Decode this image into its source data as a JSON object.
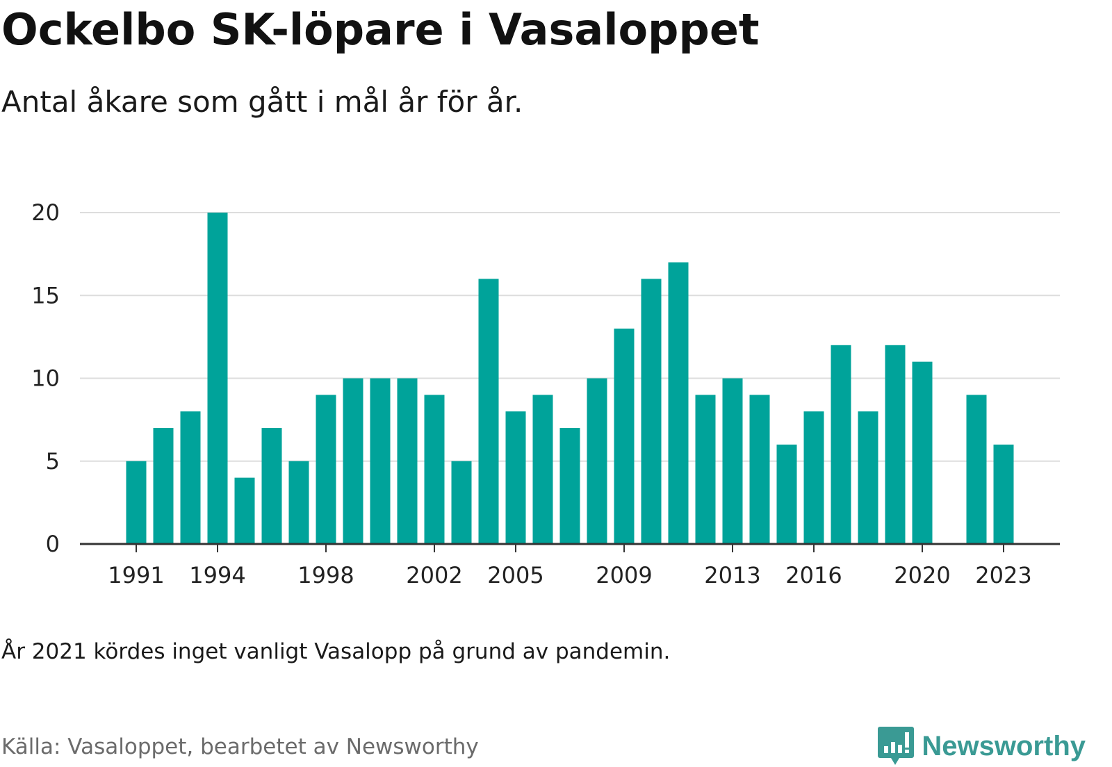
{
  "header": {
    "title": "Ockelbo SK-löpare i Vasaloppet",
    "subtitle": "Antal åkare som gått i mål år för år."
  },
  "footer": {
    "note": "År 2021 kördes inget vanligt Vasalopp på grund av pandemin.",
    "source": "Källa: Vasaloppet, bearbetet av Newsworthy",
    "logo_text": "Newsworthy",
    "logo_icon": "bar-chart-speech-bubble-icon"
  },
  "colors": {
    "bar": "#00a39a",
    "grid": "#dddddd",
    "axis": "#333333",
    "logo": "#3a9a94"
  },
  "chart_data": {
    "type": "bar",
    "x": [
      1991,
      1992,
      1993,
      1994,
      1995,
      1996,
      1997,
      1998,
      1999,
      2000,
      2001,
      2002,
      2003,
      2004,
      2005,
      2006,
      2007,
      2008,
      2009,
      2010,
      2011,
      2012,
      2013,
      2014,
      2015,
      2016,
      2017,
      2018,
      2019,
      2020,
      2021,
      2022,
      2023
    ],
    "values": [
      5,
      7,
      8,
      20,
      4,
      7,
      5,
      9,
      10,
      10,
      10,
      9,
      5,
      16,
      8,
      9,
      7,
      10,
      13,
      16,
      17,
      9,
      10,
      9,
      6,
      8,
      12,
      8,
      12,
      11,
      null,
      9,
      6
    ],
    "x_tick_labels": [
      "1991",
      "1994",
      "1998",
      "2002",
      "2005",
      "2009",
      "2013",
      "2016",
      "2020",
      "2023"
    ],
    "y_ticks": [
      0,
      5,
      10,
      15,
      20
    ],
    "ylim": [
      0,
      20
    ],
    "grid": true,
    "legend": "none"
  }
}
